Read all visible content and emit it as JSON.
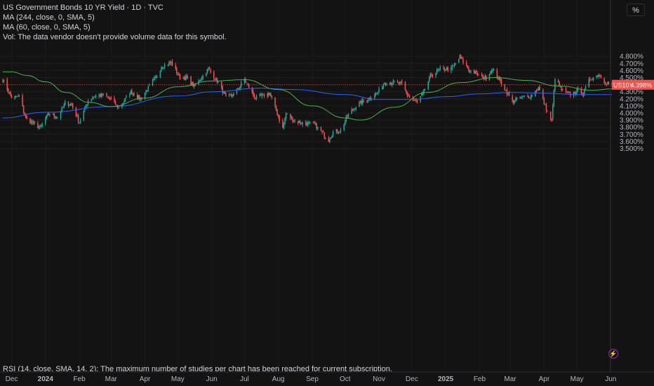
{
  "header": {
    "title": "US Government Bonds 10 YR Yield · 1D · TVC",
    "ma1": "MA (244, close, 0, SMA, 5)",
    "ma2": "MA (60, close, 0, SMA, 5)",
    "vol": "Vol: The data vendor doesn't provide volume data for this symbol."
  },
  "unit_button": "%",
  "rsi_note": "RSI (14, close, SMA, 14, 2): The maximum number of studies per chart has been reached for current subscription.",
  "colors": {
    "background": "#131313",
    "up": "#26a69a",
    "down": "#ef5350",
    "ma_long": "#2962ff",
    "ma_short": "#4caf50",
    "price_line": "#ef5350"
  },
  "chart_data": {
    "type": "candlestick",
    "symbol": "US10Y",
    "last_price_label": "US10Y",
    "last_price": "4.398%",
    "y_ticks": [
      "3.500%",
      "3.600%",
      "3.700%",
      "3.800%",
      "3.900%",
      "4.000%",
      "4.100%",
      "4.200%",
      "4.300%",
      "4.400%",
      "4.500%",
      "4.600%",
      "4.700%",
      "4.800%"
    ],
    "ylim": [
      3.48,
      4.86
    ],
    "x_ticks": [
      "Dec",
      "2024",
      "Feb",
      "Mar",
      "Apr",
      "May",
      "Jun",
      "Jul",
      "Aug",
      "Sep",
      "Oct",
      "Nov",
      "Dec",
      "2025",
      "Feb",
      "Mar",
      "Apr",
      "May",
      "Jun"
    ],
    "close_path": [
      [
        "2023-11-23",
        4.47
      ],
      [
        "2023-12-01",
        4.22
      ],
      [
        "2023-12-08",
        4.23
      ],
      [
        "2023-12-14",
        3.92
      ],
      [
        "2023-12-27",
        3.79
      ],
      [
        "2024-01-04",
        3.99
      ],
      [
        "2024-01-12",
        3.94
      ],
      [
        "2024-01-19",
        4.14
      ],
      [
        "2024-01-25",
        4.12
      ],
      [
        "2024-02-01",
        3.87
      ],
      [
        "2024-02-09",
        4.18
      ],
      [
        "2024-02-15",
        4.24
      ],
      [
        "2024-02-23",
        4.25
      ],
      [
        "2024-03-01",
        4.19
      ],
      [
        "2024-03-08",
        4.07
      ],
      [
        "2024-03-19",
        4.3
      ],
      [
        "2024-03-28",
        4.2
      ],
      [
        "2024-04-05",
        4.38
      ],
      [
        "2024-04-12",
        4.52
      ],
      [
        "2024-04-16",
        4.66
      ],
      [
        "2024-04-25",
        4.71
      ],
      [
        "2024-05-03",
        4.5
      ],
      [
        "2024-05-10",
        4.49
      ],
      [
        "2024-05-16",
        4.37
      ],
      [
        "2024-05-29",
        4.62
      ],
      [
        "2024-06-07",
        4.43
      ],
      [
        "2024-06-14",
        4.22
      ],
      [
        "2024-06-21",
        4.26
      ],
      [
        "2024-07-01",
        4.47
      ],
      [
        "2024-07-11",
        4.21
      ],
      [
        "2024-07-24",
        4.28
      ],
      [
        "2024-08-05",
        3.78
      ],
      [
        "2024-08-08",
        3.99
      ],
      [
        "2024-08-16",
        3.89
      ],
      [
        "2024-08-22",
        3.86
      ],
      [
        "2024-09-03",
        3.84
      ],
      [
        "2024-09-16",
        3.62
      ],
      [
        "2024-09-20",
        3.73
      ],
      [
        "2024-09-27",
        3.75
      ],
      [
        "2024-10-04",
        3.98
      ],
      [
        "2024-10-11",
        4.1
      ],
      [
        "2024-10-22",
        4.2
      ],
      [
        "2024-10-31",
        4.29
      ],
      [
        "2024-11-06",
        4.43
      ],
      [
        "2024-11-15",
        4.43
      ],
      [
        "2024-11-22",
        4.41
      ],
      [
        "2024-11-27",
        4.25
      ],
      [
        "2024-12-06",
        4.15
      ],
      [
        "2024-12-11",
        4.27
      ],
      [
        "2024-12-18",
        4.52
      ],
      [
        "2024-12-27",
        4.62
      ],
      [
        "2025-01-06",
        4.62
      ],
      [
        "2025-01-14",
        4.79
      ],
      [
        "2025-01-22",
        4.61
      ],
      [
        "2025-01-31",
        4.54
      ],
      [
        "2025-02-07",
        4.49
      ],
      [
        "2025-02-12",
        4.62
      ],
      [
        "2025-02-21",
        4.42
      ],
      [
        "2025-03-03",
        4.16
      ],
      [
        "2025-03-10",
        4.22
      ],
      [
        "2025-03-20",
        4.24
      ],
      [
        "2025-03-27",
        4.36
      ],
      [
        "2025-04-04",
        4.01
      ],
      [
        "2025-04-08",
        3.89
      ],
      [
        "2025-04-11",
        4.5
      ],
      [
        "2025-04-17",
        4.32
      ],
      [
        "2025-04-25",
        4.26
      ],
      [
        "2025-05-02",
        4.32
      ],
      [
        "2025-05-07",
        4.28
      ],
      [
        "2025-05-13",
        4.48
      ],
      [
        "2025-05-21",
        4.54
      ],
      [
        "2025-05-27",
        4.44
      ],
      [
        "2025-05-30",
        4.41
      ],
      [
        "2025-06-02",
        4.398
      ]
    ],
    "series": [
      {
        "values": [
          [
            "2023-11-23",
            3.93
          ],
          [
            "2024-01-01",
            4.01
          ],
          [
            "2024-03-01",
            4.09
          ],
          [
            "2024-05-01",
            4.24
          ],
          [
            "2024-06-03",
            4.3
          ],
          [
            "2024-07-15",
            4.35
          ],
          [
            "2024-08-15",
            4.33
          ],
          [
            "2024-10-01",
            4.26
          ],
          [
            "2024-11-01",
            4.19
          ],
          [
            "2024-12-01",
            4.19
          ],
          [
            "2025-01-02",
            4.23
          ],
          [
            "2025-02-01",
            4.27
          ],
          [
            "2025-03-01",
            4.29
          ],
          [
            "2025-04-01",
            4.28
          ],
          [
            "2025-05-01",
            4.26
          ],
          [
            "2025-06-02",
            4.26
          ]
        ]
      },
      {
        "values": [
          [
            "2023-11-23",
            4.58
          ],
          [
            "2023-12-01",
            4.58
          ],
          [
            "2023-12-15",
            4.53
          ],
          [
            "2024-01-01",
            4.44
          ],
          [
            "2024-01-20",
            4.29
          ],
          [
            "2024-02-10",
            4.15
          ],
          [
            "2024-03-01",
            4.09
          ],
          [
            "2024-04-01",
            4.21
          ],
          [
            "2024-05-01",
            4.37
          ],
          [
            "2024-06-01",
            4.45
          ],
          [
            "2024-07-01",
            4.47
          ],
          [
            "2024-08-01",
            4.33
          ],
          [
            "2024-09-01",
            4.1
          ],
          [
            "2024-10-01",
            3.93
          ],
          [
            "2024-10-15",
            3.9
          ],
          [
            "2024-11-15",
            4.08
          ],
          [
            "2024-12-15",
            4.29
          ],
          [
            "2025-01-15",
            4.43
          ],
          [
            "2025-02-15",
            4.5
          ],
          [
            "2025-03-15",
            4.46
          ],
          [
            "2025-04-15",
            4.38
          ],
          [
            "2025-05-15",
            4.32
          ],
          [
            "2025-06-02",
            4.34
          ]
        ]
      }
    ]
  }
}
